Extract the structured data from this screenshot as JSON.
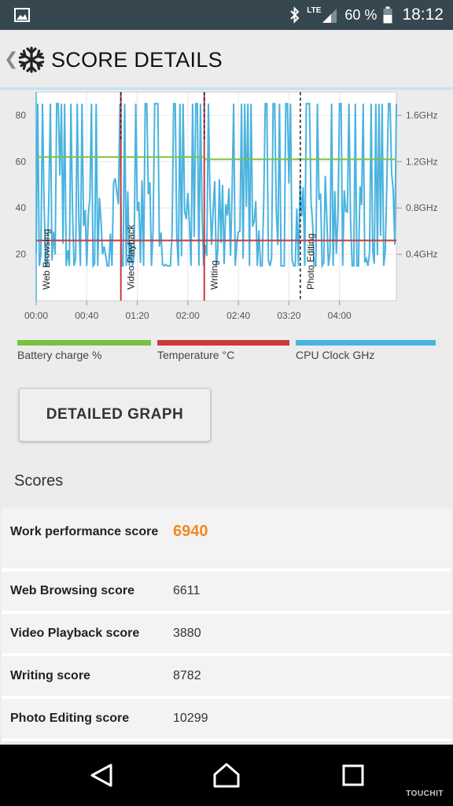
{
  "status_bar": {
    "network": "LTE",
    "battery": "60 %",
    "time": "18:12",
    "icons": [
      "gallery-icon",
      "bluetooth-icon",
      "signal-icon",
      "battery-icon"
    ]
  },
  "header": {
    "title": "SCORE DETAILS",
    "back_icon": "chevron-left-icon",
    "logo_icon": "snowflake-icon"
  },
  "chart_data": {
    "type": "line",
    "x_ticks": [
      "00:00",
      "00:40",
      "01:20",
      "02:00",
      "02:40",
      "03:20",
      "04:00"
    ],
    "x_range_minutes": [
      0,
      285
    ],
    "y_left_ticks": [
      20,
      40,
      60,
      80
    ],
    "y_left_range": [
      0,
      90
    ],
    "y_right_ticks": [
      "0.4GHz",
      "0.8GHz",
      "1.2GHz",
      "1.6GHz"
    ],
    "y_right_values": [
      0.4,
      0.8,
      1.2,
      1.6
    ],
    "grid": true,
    "markers": [
      {
        "label": "Web Browsing",
        "minute": 0
      },
      {
        "label": "Video Playback",
        "minute": 67
      },
      {
        "label": "Writing",
        "minute": 133
      },
      {
        "label": "Photo Editing",
        "minute": 209
      }
    ],
    "series": [
      {
        "name": "Battery charge %",
        "color": "#7ac143",
        "segments": [
          [
            0,
            62,
            132,
            62
          ],
          [
            133,
            61,
            285,
            61
          ]
        ]
      },
      {
        "name": "Temperature °C",
        "color": "#c9393e",
        "segments": [
          [
            0,
            26,
            285,
            26
          ]
        ]
      },
      {
        "name": "CPU Clock GHz",
        "color": "#4ab3df",
        "min": 0.3,
        "max": 1.7
      }
    ]
  },
  "legend": [
    {
      "label": "Battery charge %",
      "color": "#7ac143"
    },
    {
      "label": "Temperature °C",
      "color": "#c9393e"
    },
    {
      "label": "CPU Clock GHz",
      "color": "#4ab3df"
    }
  ],
  "detail_button": "DETAILED GRAPH",
  "scores": {
    "title": "Scores",
    "rows": [
      {
        "label": "Work performance score",
        "value": "6940"
      },
      {
        "label": "Web Browsing score",
        "value": "6611"
      },
      {
        "label": "Video Playback score",
        "value": "3880"
      },
      {
        "label": "Writing score",
        "value": "8782"
      },
      {
        "label": "Photo Editing score",
        "value": "10299"
      }
    ]
  },
  "watermark": "TOUCHIT",
  "nav": [
    "back-icon",
    "home-icon",
    "recents-icon"
  ]
}
